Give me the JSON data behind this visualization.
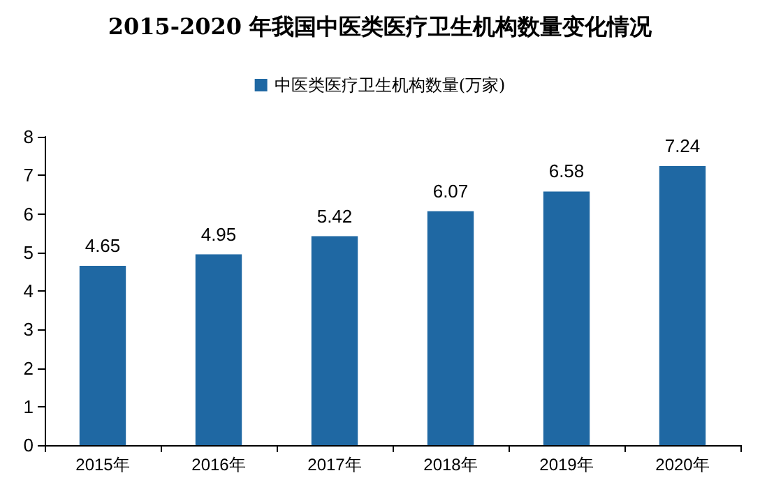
{
  "chart_data": {
    "type": "bar",
    "title": "2015-2020 年我国中医类医疗卫生机构数量变化情况",
    "categories": [
      "2015年",
      "2016年",
      "2017年",
      "2018年",
      "2019年",
      "2020年"
    ],
    "series": [
      {
        "name": "中医类医疗卫生机构数量(万家)",
        "color": "#1f68a3",
        "values": [
          4.65,
          4.95,
          5.42,
          6.07,
          6.58,
          7.24
        ]
      }
    ],
    "ylim": [
      0,
      8
    ],
    "yticks": [
      0,
      1,
      2,
      3,
      4,
      5,
      6,
      7,
      8
    ],
    "grid": false,
    "legend": "top",
    "data_labels": true
  }
}
